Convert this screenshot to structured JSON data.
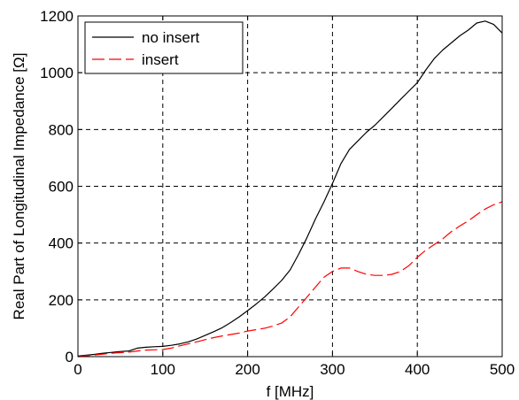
{
  "chart_data": {
    "type": "line",
    "title": "",
    "xlabel": "f [MHz]",
    "ylabel": "Real Part of Longitudinal Impedance [Ω]",
    "xlim": [
      0,
      500
    ],
    "ylim": [
      0,
      1200
    ],
    "xticks": [
      0,
      100,
      200,
      300,
      400,
      500
    ],
    "yticks": [
      0,
      200,
      400,
      600,
      800,
      1000,
      1200
    ],
    "grid": true,
    "legend": "top-left",
    "series": [
      {
        "name": "no insert",
        "color": "#000000",
        "style": "solid",
        "x": [
          0,
          10,
          20,
          30,
          40,
          50,
          60,
          70,
          80,
          90,
          100,
          110,
          120,
          130,
          140,
          150,
          160,
          170,
          180,
          190,
          200,
          210,
          220,
          230,
          240,
          250,
          260,
          270,
          280,
          290,
          300,
          310,
          320,
          330,
          340,
          350,
          360,
          370,
          380,
          390,
          400,
          410,
          420,
          430,
          440,
          450,
          460,
          470,
          480,
          490,
          500
        ],
        "y": [
          2,
          5,
          8,
          12,
          15,
          18,
          20,
          30,
          33,
          35,
          36,
          40,
          45,
          52,
          62,
          75,
          88,
          102,
          120,
          140,
          162,
          185,
          210,
          238,
          268,
          305,
          360,
          420,
          485,
          545,
          610,
          680,
          730,
          760,
          790,
          815,
          845,
          875,
          905,
          935,
          965,
          1010,
          1050,
          1080,
          1105,
          1130,
          1150,
          1175,
          1182,
          1170,
          1140
        ]
      },
      {
        "name": "insert",
        "color": "#ff0000",
        "style": "dashed",
        "x": [
          0,
          10,
          20,
          30,
          40,
          50,
          60,
          70,
          80,
          90,
          100,
          110,
          120,
          130,
          140,
          150,
          160,
          170,
          180,
          190,
          200,
          210,
          220,
          230,
          240,
          250,
          260,
          270,
          280,
          290,
          300,
          310,
          320,
          330,
          340,
          350,
          360,
          370,
          380,
          390,
          400,
          410,
          420,
          430,
          440,
          450,
          460,
          470,
          480,
          490,
          500
        ],
        "y": [
          0,
          3,
          6,
          9,
          12,
          14,
          16,
          20,
          23,
          24,
          25,
          30,
          38,
          45,
          52,
          60,
          67,
          73,
          78,
          83,
          90,
          95,
          100,
          108,
          118,
          140,
          175,
          210,
          245,
          280,
          300,
          312,
          312,
          300,
          290,
          286,
          286,
          290,
          300,
          320,
          350,
          375,
          395,
          415,
          440,
          460,
          478,
          500,
          520,
          535,
          545
        ]
      }
    ]
  }
}
